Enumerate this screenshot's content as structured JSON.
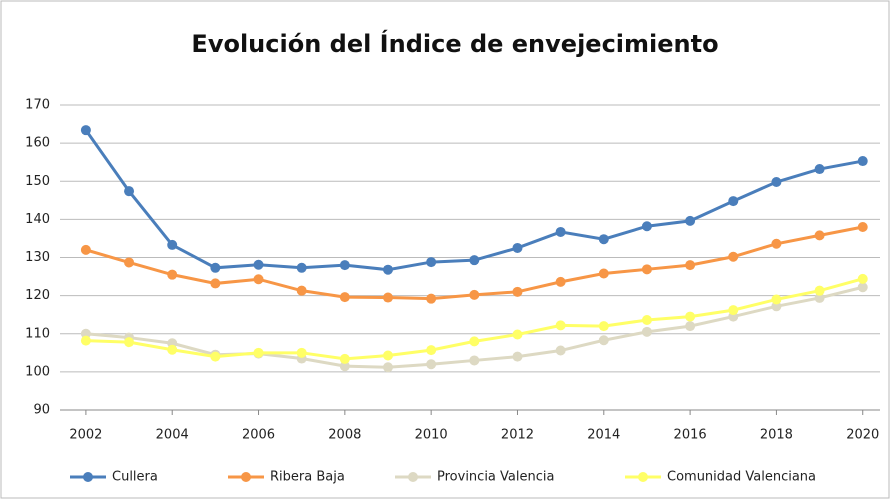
{
  "chart_data": {
    "type": "line",
    "title": "Evolución del Índice de envejecimiento",
    "x": [
      2002,
      2003,
      2004,
      2005,
      2006,
      2007,
      2008,
      2009,
      2010,
      2011,
      2012,
      2013,
      2014,
      2015,
      2016,
      2017,
      2018,
      2019,
      2020
    ],
    "xlim": [
      2001.4,
      2020.4
    ],
    "xticks": [
      2002,
      2004,
      2006,
      2008,
      2010,
      2012,
      2014,
      2016,
      2018,
      2020
    ],
    "ylim": [
      90,
      170
    ],
    "yticks": [
      90,
      100,
      110,
      120,
      130,
      140,
      150,
      160,
      170
    ],
    "grid": true,
    "legend": "bottom",
    "series": [
      {
        "name": "Cullera",
        "color": "#4a7ebb",
        "values": [
          163.4,
          147.4,
          133.3,
          127.3,
          128.1,
          127.3,
          128,
          126.8,
          128.8,
          129.3,
          132.5,
          136.7,
          134.8,
          138.2,
          139.6,
          144.8,
          149.8,
          153.2,
          155.3
        ]
      },
      {
        "name": "Ribera Baja",
        "color": "#f79646",
        "values": [
          132,
          128.7,
          125.5,
          123.2,
          124.3,
          121.3,
          119.6,
          119.5,
          119.2,
          120.2,
          121,
          123.6,
          125.8,
          126.9,
          128,
          130.2,
          133.6,
          135.8,
          138
        ]
      },
      {
        "name": "Provincia Valencia",
        "color": "#ddd9c3",
        "values": [
          110,
          109,
          107.5,
          104.5,
          104.8,
          103.5,
          101.5,
          101.2,
          102,
          103,
          104,
          105.6,
          108.3,
          110.5,
          112,
          114.5,
          117.2,
          119.4,
          122.2
        ]
      },
      {
        "name": "Comunidad Valenciana",
        "color": "#ffff66",
        "values": [
          108.2,
          107.8,
          105.8,
          104,
          105,
          105,
          103.4,
          104.3,
          105.7,
          108,
          109.8,
          112.2,
          112,
          113.6,
          114.5,
          116.2,
          119,
          121.3,
          124.4
        ]
      }
    ]
  }
}
